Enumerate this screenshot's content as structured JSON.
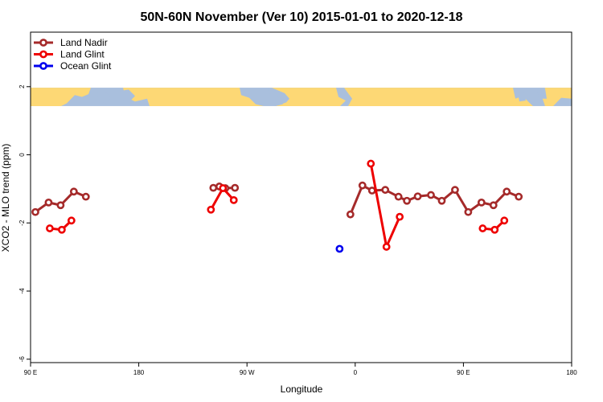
{
  "chart_data": {
    "type": "line",
    "title": "50N-60N November (Ver 10)   2015-01-01 to 2020-12-18",
    "xlabel": "Longitude",
    "ylabel": "XCO2 - MLO trend (ppm)",
    "x_ticks": [
      {
        "value": 90,
        "label": "90 E"
      },
      {
        "value": 180,
        "label": "180"
      },
      {
        "value": 270,
        "label": "90 W"
      },
      {
        "value": 360,
        "label": "0"
      },
      {
        "value": 450,
        "label": "90 E"
      },
      {
        "value": 540,
        "label": "180"
      }
    ],
    "y_ticks": [
      {
        "value": 2,
        "label": "2"
      },
      {
        "value": 0,
        "label": "0"
      },
      {
        "value": -2,
        "label": "-2"
      },
      {
        "value": -4,
        "label": "-4"
      },
      {
        "value": -6,
        "label": "-6"
      }
    ],
    "xlim": [
      90,
      540
    ],
    "ylim": [
      -6.1,
      3.6
    ],
    "legend_position": "top-left",
    "map_band": {
      "ymin": 1.43,
      "ymax": 1.97,
      "ocean_color": "#a9bfdd",
      "land_color": "#fdd875"
    },
    "grid": false,
    "series": [
      {
        "name": "Land Nadir",
        "color": "#a52a2a",
        "segments": [
          [
            [
              94,
              -1.68
            ],
            [
              105,
              -1.4
            ],
            [
              115,
              -1.48
            ],
            [
              126,
              -1.08
            ],
            [
              136,
              -1.23
            ]
          ],
          [
            [
              242,
              -0.97
            ],
            [
              247,
              -0.93
            ],
            [
              252,
              -0.98
            ],
            [
              260,
              -0.97
            ]
          ],
          [
            [
              356,
              -1.75
            ],
            [
              366,
              -0.9
            ],
            [
              374,
              -1.05
            ],
            [
              385,
              -1.03
            ],
            [
              396,
              -1.23
            ],
            [
              403,
              -1.35
            ],
            [
              412,
              -1.22
            ],
            [
              423,
              -1.18
            ],
            [
              432,
              -1.35
            ],
            [
              443,
              -1.03
            ],
            [
              454,
              -1.68
            ],
            [
              465,
              -1.4
            ],
            [
              475,
              -1.48
            ],
            [
              486,
              -1.08
            ],
            [
              496,
              -1.23
            ]
          ]
        ]
      },
      {
        "name": "Land Glint",
        "color": "#ee0000",
        "segments": [
          [
            [
              106,
              -2.16
            ],
            [
              116,
              -2.2
            ],
            [
              124,
              -1.93
            ]
          ],
          [
            [
              240,
              -1.61
            ],
            [
              250,
              -0.98
            ],
            [
              259,
              -1.33
            ]
          ],
          [
            [
              373,
              -0.26
            ],
            [
              386,
              -2.7
            ],
            [
              397,
              -1.82
            ]
          ],
          [
            [
              466,
              -2.16
            ],
            [
              476,
              -2.2
            ],
            [
              484,
              -1.93
            ]
          ]
        ]
      },
      {
        "name": "Ocean Glint",
        "color": "#0000ee",
        "segments": [
          [
            [
              347,
              -2.76
            ]
          ]
        ]
      }
    ]
  }
}
